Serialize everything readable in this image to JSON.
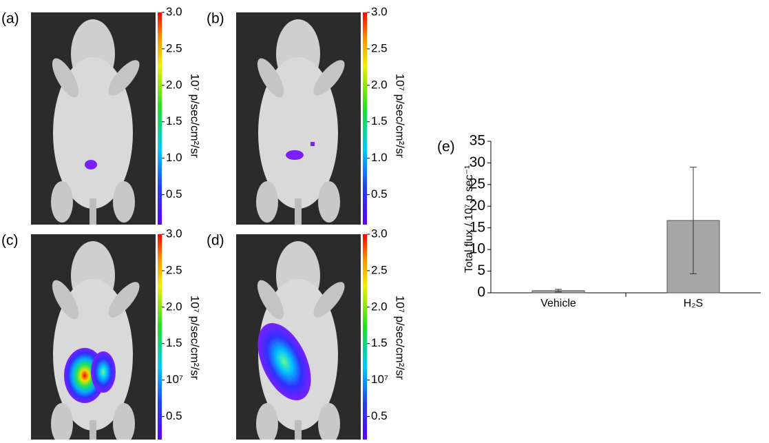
{
  "panels": [
    {
      "label": "(a)",
      "colorbar": {
        "label": "10⁷ p/sec/cm²/sr",
        "lim": [
          0.09,
          3
        ],
        "ticks": [
          {
            "value": 3,
            "label": "3.0"
          },
          2.5,
          {
            "value": 2,
            "label": "2.0"
          },
          1.5,
          {
            "value": 1,
            "label": "1.0"
          },
          0.5
        ]
      }
    },
    {
      "label": "(b)",
      "colorbar": {
        "label": "10⁷ p/sec/cm²/sr",
        "lim": [
          0.09,
          3
        ],
        "ticks": [
          {
            "value": 3,
            "label": "3.0"
          },
          2.5,
          {
            "value": 2,
            "label": "2.0"
          },
          1.5,
          {
            "value": 1,
            "label": "1.0"
          },
          0.5
        ]
      }
    },
    {
      "label": "(c)",
      "colorbar": {
        "label": "10⁷ p/sec/cm²/sr",
        "lim": [
          0.09,
          3
        ],
        "ticks": [
          {
            "value": 3,
            "label": "3.0"
          },
          2.5,
          {
            "value": 2,
            "label": "2.0"
          },
          1.5,
          {
            "value": 1,
            "label": "10⁷"
          },
          0.5
        ]
      }
    },
    {
      "label": "(d)",
      "colorbar": {
        "label": "10⁷ p/sec/cm²/sr",
        "lim": [
          0.09,
          3
        ],
        "ticks": [
          {
            "value": 3,
            "label": "3.0"
          },
          2.5,
          {
            "value": 2,
            "label": "2.0"
          },
          1.5,
          {
            "value": 1,
            "label": "10⁷"
          },
          0.5
        ]
      }
    }
  ],
  "chart_data": {
    "type": "bar",
    "panel_label": "(e)",
    "y_label": "Total flux  / 10⁷ p sec⁻¹",
    "categories": [
      "Vehicle",
      "H₂S"
    ],
    "values": [
      0.5,
      16.7
    ],
    "errors": [
      0.3,
      12.3
    ],
    "color": "#a6a6a6",
    "ylim": [
      0,
      35
    ],
    "yticks": [
      0,
      5,
      10,
      15,
      20,
      25,
      30,
      35
    ]
  }
}
